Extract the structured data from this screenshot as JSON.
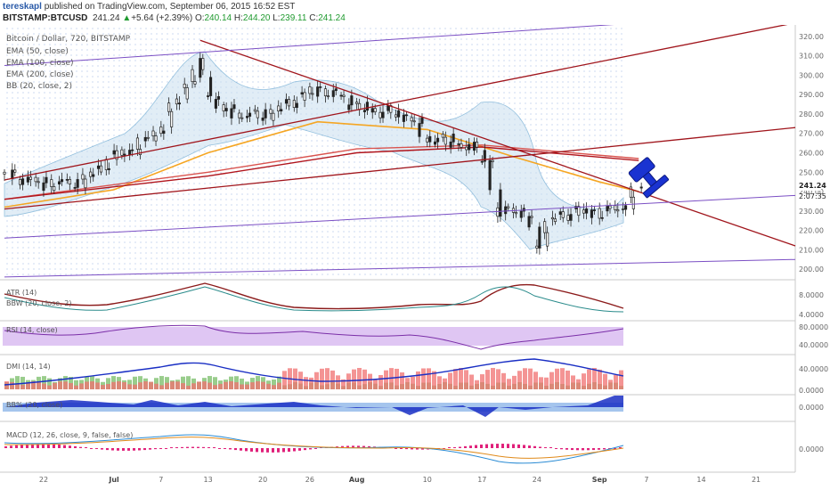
{
  "header": {
    "author": "tereskapl",
    "published_text": " published on TradingView.com, September 06, 2015 16:52 EST",
    "symbol": "BITSTAMP:BTCUSD",
    "last": "241.24",
    "change": "+5.64 (+2.39%)",
    "ohlc": [
      {
        "k": "O:",
        "v": "240.14"
      },
      {
        "k": "H:",
        "v": "244.20"
      },
      {
        "k": "L:",
        "v": "239.11"
      },
      {
        "k": "C:",
        "v": "241.24"
      }
    ]
  },
  "colors": {
    "up": "#1f9a2f",
    "grid_dot": "#3f6fc4",
    "ema50": "#f5a623",
    "ema100": "#d9534f",
    "ema200": "#b0141c",
    "trend_red": "#a0151c",
    "channel_purple": "#7b4fc4",
    "hammer": "#1a33d1"
  },
  "legend": {
    "title": "Bitcoin / Dollar, 720, BITSTAMP",
    "items": [
      "EMA (50, close)",
      "EMA (100, close)",
      "EMA (200, close)",
      "BB (20, close, 2)"
    ]
  },
  "panes": {
    "atr": "ATR (14)",
    "bbw": "BBW (20, close, 2)",
    "rsi": "RSI (14, close)",
    "dmi": "DMI (14, 14)",
    "bb": "BB% (20, close)",
    "macd": "MACD (12, 26, close, 9, false, false)"
  },
  "price_axis": [
    "320.00",
    "310.00",
    "300.00",
    "290.00",
    "280.00",
    "270.00",
    "260.00",
    "250.00",
    "240.00",
    "230.00",
    "220.00",
    "210.00",
    "200.00"
  ],
  "price_tags": {
    "last": "241.24",
    "timer": "2:07:35"
  },
  "atr_axis": [
    "8.0000",
    "4.0000"
  ],
  "rsi_axis": [
    "80.0000",
    "40.0000"
  ],
  "dmi_axis": [
    "40.0000",
    "0.0000"
  ],
  "bb_axis": [
    "0.0000"
  ],
  "macd_axis": [
    "0.0000"
  ],
  "x_axis": [
    "22",
    "Jul",
    "7",
    "13",
    "20",
    "26",
    "Aug",
    "10",
    "17",
    "24",
    "Sep",
    "7",
    "14",
    "21"
  ],
  "icons": [
    "gavel-icon"
  ],
  "chart_data": {
    "type": "candlestick",
    "title": "Bitcoin / Dollar, 720, BITSTAMP",
    "ylim": [
      195,
      325
    ],
    "x_range": [
      "2015-06-17",
      "2015-09-26"
    ],
    "x_ticks": [
      "22",
      "Jul",
      "7",
      "13",
      "20",
      "26",
      "Aug",
      "10",
      "17",
      "24",
      "Sep",
      "7",
      "14",
      "21"
    ],
    "y_ticks": [
      200,
      210,
      220,
      230,
      240,
      250,
      260,
      270,
      280,
      290,
      300,
      310,
      320
    ],
    "last_price": 241.24,
    "close_path": [
      {
        "x": "2015-06-17",
        "y": 249
      },
      {
        "x": "2015-06-22",
        "y": 244
      },
      {
        "x": "2015-06-27",
        "y": 245
      },
      {
        "x": "2015-07-01",
        "y": 258
      },
      {
        "x": "2015-07-04",
        "y": 263
      },
      {
        "x": "2015-07-07",
        "y": 272
      },
      {
        "x": "2015-07-10",
        "y": 293
      },
      {
        "x": "2015-07-12",
        "y": 305
      },
      {
        "x": "2015-07-13",
        "y": 292
      },
      {
        "x": "2015-07-15",
        "y": 282
      },
      {
        "x": "2015-07-18",
        "y": 279
      },
      {
        "x": "2015-07-21",
        "y": 280
      },
      {
        "x": "2015-07-24",
        "y": 287
      },
      {
        "x": "2015-07-27",
        "y": 293
      },
      {
        "x": "2015-07-30",
        "y": 289
      },
      {
        "x": "2015-08-02",
        "y": 282
      },
      {
        "x": "2015-08-05",
        "y": 281
      },
      {
        "x": "2015-08-08",
        "y": 278
      },
      {
        "x": "2015-08-10",
        "y": 267
      },
      {
        "x": "2015-08-13",
        "y": 266
      },
      {
        "x": "2015-08-16",
        "y": 262
      },
      {
        "x": "2015-08-18",
        "y": 255
      },
      {
        "x": "2015-08-19",
        "y": 228
      },
      {
        "x": "2015-08-21",
        "y": 232
      },
      {
        "x": "2015-08-23",
        "y": 226
      },
      {
        "x": "2015-08-24",
        "y": 212
      },
      {
        "x": "2015-08-26",
        "y": 226
      },
      {
        "x": "2015-08-29",
        "y": 230
      },
      {
        "x": "2015-09-01",
        "y": 229
      },
      {
        "x": "2015-09-04",
        "y": 232
      },
      {
        "x": "2015-09-06",
        "y": 241.24
      }
    ],
    "series": [
      {
        "name": "EMA (50, close)",
        "points": [
          {
            "x": "2015-06-17",
            "y": 232
          },
          {
            "x": "2015-07-01",
            "y": 241
          },
          {
            "x": "2015-07-13",
            "y": 260
          },
          {
            "x": "2015-07-27",
            "y": 276
          },
          {
            "x": "2015-08-10",
            "y": 272
          },
          {
            "x": "2015-08-21",
            "y": 258
          },
          {
            "x": "2015-09-01",
            "y": 245
          },
          {
            "x": "2015-09-06",
            "y": 240
          }
        ]
      },
      {
        "name": "EMA (100, close)",
        "points": [
          {
            "x": "2015-06-17",
            "y": 236
          },
          {
            "x": "2015-07-13",
            "y": 250
          },
          {
            "x": "2015-08-01",
            "y": 262
          },
          {
            "x": "2015-08-17",
            "y": 264
          },
          {
            "x": "2015-09-06",
            "y": 257
          }
        ]
      },
      {
        "name": "EMA (200, close)",
        "points": [
          {
            "x": "2015-06-17",
            "y": 236
          },
          {
            "x": "2015-07-13",
            "y": 248
          },
          {
            "x": "2015-08-01",
            "y": 260
          },
          {
            "x": "2015-08-17",
            "y": 263
          },
          {
            "x": "2015-09-06",
            "y": 256
          }
        ]
      }
    ],
    "trendlines": [
      {
        "color": "#a0151c",
        "from": {
          "x": "2015-07-12",
          "y": 318
        },
        "to": {
          "x": "2015-09-26",
          "y": 212
        }
      },
      {
        "color": "#a0151c",
        "from": {
          "x": "2015-06-17",
          "y": 231
        },
        "to": {
          "x": "2015-09-26",
          "y": 273
        }
      },
      {
        "color": "#a0151c",
        "from": {
          "x": "2015-06-17",
          "y": 246
        },
        "to": {
          "x": "2015-09-26",
          "y": 327
        }
      },
      {
        "color": "#7b4fc4",
        "from": {
          "x": "2015-06-17",
          "y": 305
        },
        "to": {
          "x": "2015-09-06",
          "y": 327
        }
      },
      {
        "color": "#7b4fc4",
        "from": {
          "x": "2015-06-17",
          "y": 216
        },
        "to": {
          "x": "2015-09-26",
          "y": 238
        }
      },
      {
        "color": "#7b4fc4",
        "from": {
          "x": "2015-06-17",
          "y": 196
        },
        "to": {
          "x": "2015-09-26",
          "y": 205
        }
      }
    ]
  }
}
